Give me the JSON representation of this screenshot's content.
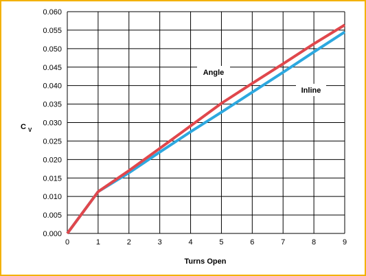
{
  "chart_data": {
    "type": "line",
    "title": "",
    "xlabel": "Turns Open",
    "ylabel": "C",
    "ylabel_subscript": "V",
    "x": [
      0,
      1,
      2,
      3,
      4,
      5,
      6,
      7,
      8,
      9
    ],
    "xlim": [
      0,
      9
    ],
    "ylim": [
      0.0,
      0.06
    ],
    "x_ticks": [
      "0",
      "1",
      "2",
      "3",
      "4",
      "5",
      "6",
      "7",
      "8",
      "9"
    ],
    "y_ticks": [
      "0.000",
      "0.005",
      "0.010",
      "0.015",
      "0.020",
      "0.025",
      "0.030",
      "0.035",
      "0.040",
      "0.045",
      "0.050",
      "0.055",
      "0.060"
    ],
    "grid": true,
    "series": [
      {
        "name": "Angle",
        "color": "#e0474c",
        "values": [
          0.0,
          0.0113,
          0.017,
          0.023,
          0.0291,
          0.0352,
          0.0406,
          0.0459,
          0.0513,
          0.0564
        ]
      },
      {
        "name": "Inline",
        "color": "#2da8df",
        "values": [
          0.0,
          0.0113,
          0.0164,
          0.022,
          0.0275,
          0.0328,
          0.0382,
          0.0436,
          0.0491,
          0.0545
        ]
      }
    ]
  }
}
